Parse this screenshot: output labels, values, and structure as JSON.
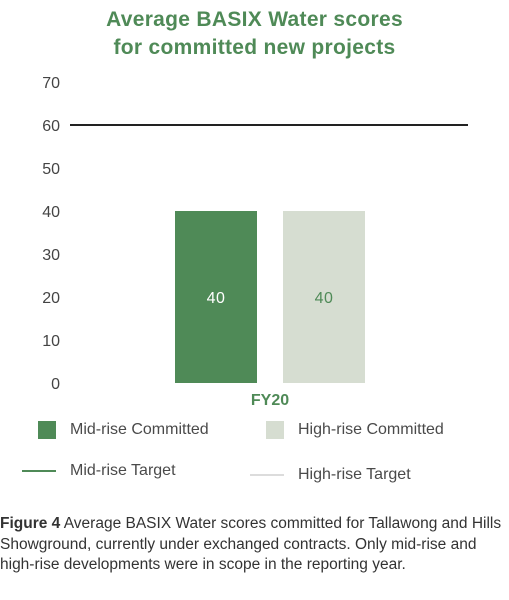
{
  "colors": {
    "title": "#4f8a57",
    "mid_rise": "#4f8a57",
    "high_rise": "#d6ddd1",
    "axis_text": "#444444",
    "target_line": "#222222",
    "high_rise_target": "#dcdcdc"
  },
  "chart_data": {
    "type": "bar",
    "title_lines": [
      "Average BASIX Water scores",
      "for committed new projects"
    ],
    "categories": [
      "FY20"
    ],
    "series": [
      {
        "name": "Mid-rise Committed",
        "values": [
          40
        ]
      },
      {
        "name": "High-rise Committed",
        "values": [
          40
        ]
      }
    ],
    "targets": [
      {
        "name": "Mid-rise Target",
        "value": 60
      },
      {
        "name": "High-rise Target",
        "value": 60
      }
    ],
    "data_labels": [
      "40",
      "40"
    ],
    "ylim": [
      0,
      70
    ],
    "yticks": [
      "0",
      "10",
      "20",
      "30",
      "40",
      "50",
      "60",
      "70"
    ],
    "grid": false,
    "legend_position": "bottom"
  },
  "legend": {
    "mid_committed": "Mid-rise Committed",
    "high_committed": "High-rise Committed",
    "mid_target": "Mid-rise Target",
    "high_target": "High-rise Target"
  },
  "caption": {
    "label": "Figure 4",
    "text": " Average BASIX Water scores committed for Tallawong and Hills Showground, currently under exchanged contracts. Only mid-rise and high-rise developments were in scope in the reporting year."
  }
}
